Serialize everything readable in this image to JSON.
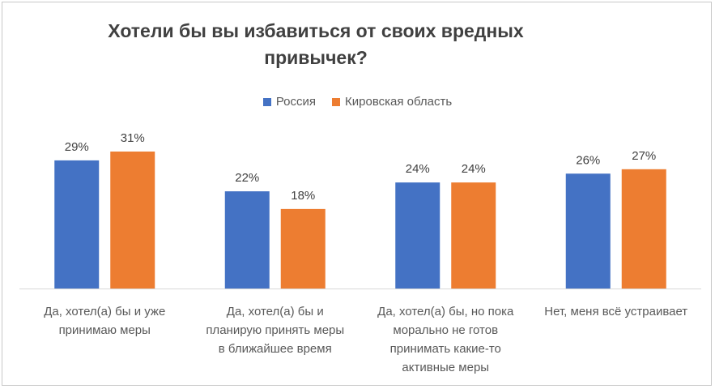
{
  "chart_data": {
    "type": "bar",
    "title": "Хотели бы вы избавиться  от своих вредных\nпривычек?",
    "categories": [
      [
        "Да, хотел(а) бы и уже",
        "принимаю меры"
      ],
      [
        "Да, хотел(а) бы и",
        "планирую принять меры",
        "в ближайшее время"
      ],
      [
        "Да, хотел(а) бы, но пока",
        "морально не готов",
        "принимать какие-то",
        "активные меры"
      ],
      [
        "Нет, меня всё устраивает"
      ]
    ],
    "series": [
      {
        "name": "Россия",
        "color": "#4472c4",
        "values": [
          29,
          22,
          24,
          26
        ],
        "labels": [
          "29%",
          "22%",
          "24%",
          "26%"
        ]
      },
      {
        "name": "Кировская область",
        "color": "#ed7d31",
        "values": [
          31,
          18,
          24,
          27
        ],
        "labels": [
          "31%",
          "18%",
          "24%",
          "27%"
        ]
      }
    ],
    "ylim": [
      0,
      31
    ],
    "legend_position": "top",
    "grid": false
  }
}
